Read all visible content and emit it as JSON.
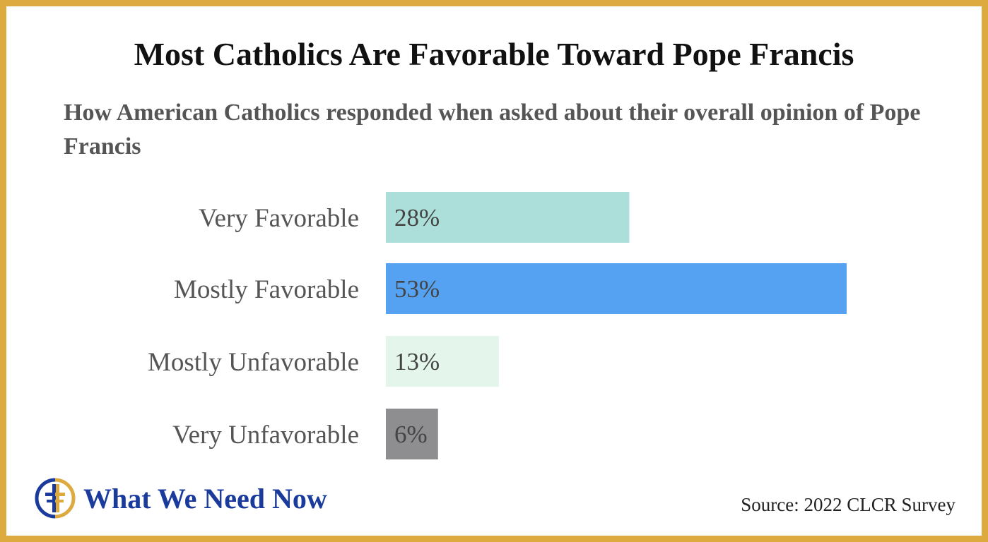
{
  "colors": {
    "border": "#dcaa3f",
    "title": "#111111",
    "subtitle": "#555555",
    "bars": [
      "#addfda",
      "#55a2f2",
      "#e4f5ec",
      "#8e8e90"
    ],
    "logo_blue": "#1a3a9c",
    "logo_gold": "#dcaa3f"
  },
  "logo": {
    "icon": "cross-circle-logo-icon",
    "text": "What We Need Now"
  },
  "source": "Source: 2022 CLCR Survey",
  "chart_data": {
    "type": "bar",
    "orientation": "horizontal",
    "title": "Most Catholics Are Favorable Toward Pope Francis",
    "subtitle": "How American Catholics responded when asked about their overall opinion of Pope Francis",
    "categories": [
      "Very Favorable",
      "Mostly Favorable",
      "Mostly Unfavorable",
      "Very Unfavorable"
    ],
    "values": [
      28,
      53,
      13,
      6
    ],
    "value_labels": [
      "28%",
      "53%",
      "13%",
      "6%"
    ],
    "unit": "%",
    "xlim": [
      0,
      53
    ],
    "grid": false,
    "legend": "none"
  }
}
